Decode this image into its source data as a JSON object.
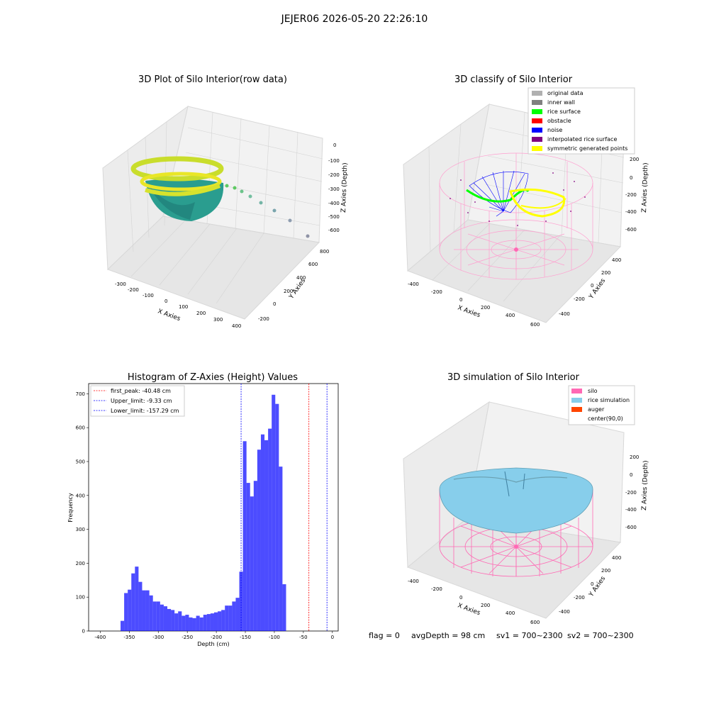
{
  "suptitle": "JEJER06 2026-05-20 22:26:10",
  "panels": {
    "raw": {
      "title": "3D Plot of Silo Interior(row data)",
      "xlabel": "X Axies",
      "ylabel": "Y Axies",
      "zlabel": "Z Axies (Depth)",
      "xticks": [
        "-300",
        "-200",
        "-100",
        "0",
        "100",
        "200",
        "300",
        "400"
      ],
      "yticks": [
        "-200",
        "0",
        "200",
        "400",
        "600",
        "800"
      ],
      "zticks": [
        "0",
        "-100",
        "-200",
        "-300",
        "-400",
        "-500",
        "-600"
      ]
    },
    "classify": {
      "title": "3D classify of Silo Interior",
      "xlabel": "X Axies",
      "ylabel": "Y Axies",
      "zlabel": "Z Axies (Depth)",
      "xticks": [
        "-400",
        "-200",
        "0",
        "200",
        "400",
        "600"
      ],
      "yticks": [
        "-400",
        "-200",
        "0",
        "200",
        "400"
      ],
      "zticks": [
        "200",
        "0",
        "-200",
        "-400",
        "-600"
      ],
      "legend": [
        {
          "label": "original data",
          "color": "#b0b0b0"
        },
        {
          "label": "inner wall",
          "color": "#808080"
        },
        {
          "label": "rice surface",
          "color": "#00ff00"
        },
        {
          "label": "obstacle",
          "color": "#ff0000"
        },
        {
          "label": "noise",
          "color": "#0000ff"
        },
        {
          "label": "interpolated rice surface",
          "color": "#800080"
        },
        {
          "label": "symmetric generated points",
          "color": "#ffff00"
        }
      ]
    },
    "simulation": {
      "title": "3D simulation of Silo Interior",
      "xlabel": "X Axies",
      "ylabel": "Y Axies",
      "zlabel": "Z Axies (Depth)",
      "xticks": [
        "-400",
        "-200",
        "0",
        "200",
        "400",
        "600"
      ],
      "yticks": [
        "-400",
        "-200",
        "0",
        "200",
        "400"
      ],
      "zticks": [
        "200",
        "0",
        "-200",
        "-400",
        "-600"
      ],
      "legend": [
        {
          "label": "silo",
          "color": "#ff69b4"
        },
        {
          "label": "rice simulation",
          "color": "#87ceeb"
        },
        {
          "label": "auger",
          "color": "#ff4500"
        },
        {
          "label": "center(90,0)",
          "color": "none"
        }
      ]
    }
  },
  "footer": {
    "flag": "flag = 0",
    "avg": "avgDepth = 98 cm",
    "sv1": "sv1 = 700~2300",
    "sv2": "sv2 = 700~2300"
  },
  "chart_data": {
    "type": "bar",
    "title": "Histogram of Z-Axies (Height) Values",
    "xlabel": "Depth (cm)",
    "ylabel": "Frequency",
    "xlim": [
      -420,
      10
    ],
    "ylim": [
      0,
      730
    ],
    "xticks": [
      -400,
      -350,
      -300,
      -250,
      -200,
      -150,
      -100,
      -50,
      0
    ],
    "yticks": [
      0,
      100,
      200,
      300,
      400,
      500,
      600,
      700
    ],
    "bar_color": "#0000ff",
    "bin_start": -365,
    "bin_width": 6.2,
    "values": [
      30,
      112,
      122,
      170,
      190,
      145,
      120,
      120,
      105,
      87,
      87,
      78,
      73,
      65,
      62,
      52,
      58,
      45,
      48,
      40,
      38,
      45,
      40,
      48,
      50,
      52,
      55,
      58,
      62,
      75,
      75,
      87,
      98,
      175,
      560,
      437,
      397,
      443,
      535,
      580,
      563,
      597,
      697,
      670,
      485,
      138
    ],
    "lines": [
      {
        "label": "first_peak: -40.48 cm",
        "x": -40.48,
        "color": "#ff0000"
      },
      {
        "label": "Upper_limit: -9.33 cm",
        "x": -9.33,
        "color": "#0000ff"
      },
      {
        "label": "Lower_limit: -157.29 cm",
        "x": -157.29,
        "color": "#0000ff"
      }
    ]
  }
}
